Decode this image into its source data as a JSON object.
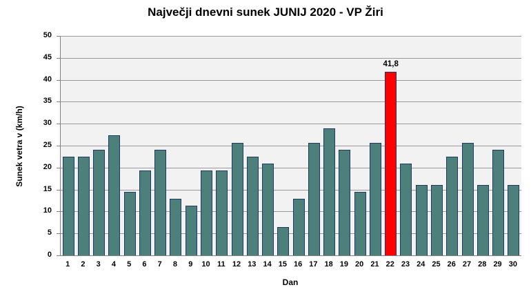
{
  "title": "Največji dnevni sunek JUNIJ 2020 - VP Žiri",
  "chart_data": {
    "type": "bar",
    "title": "Največji dnevni sunek JUNIJ 2020 - VP Žiri",
    "xlabel": "Dan",
    "ylabel": "Sunek vetra v (km/h)",
    "categories": [
      "1",
      "2",
      "3",
      "4",
      "5",
      "6",
      "7",
      "8",
      "9",
      "10",
      "11",
      "12",
      "13",
      "14",
      "15",
      "16",
      "17",
      "18",
      "19",
      "20",
      "21",
      "22",
      "23",
      "24",
      "25",
      "26",
      "27",
      "28",
      "29",
      "30"
    ],
    "values": [
      22.5,
      22.5,
      24.1,
      27.4,
      14.5,
      19.3,
      24.1,
      12.9,
      11.3,
      19.3,
      19.3,
      25.7,
      22.5,
      20.9,
      6.4,
      12.9,
      25.7,
      29.0,
      24.1,
      14.5,
      25.7,
      41.8,
      20.9,
      16.1,
      16.1,
      22.5,
      25.7,
      16.1,
      24.1,
      16.1
    ],
    "highlight": {
      "category": "22",
      "index": 21,
      "value": 41.8,
      "label": "41,8"
    },
    "ylim": [
      0,
      50
    ],
    "ytick_step": 5,
    "ytick_labels": [
      "0",
      "5",
      "10",
      "15",
      "20",
      "25",
      "30",
      "35",
      "40",
      "45",
      "50"
    ],
    "grid": true,
    "legend": "none",
    "colors": {
      "bar_fill": "#4D807B",
      "bar_border": "#1F3864",
      "bar_highlight": "#FF0000",
      "plot_background": "#F2F2F2",
      "gridline": "#999999",
      "axis_line": "#808080",
      "text": "#000000"
    }
  }
}
